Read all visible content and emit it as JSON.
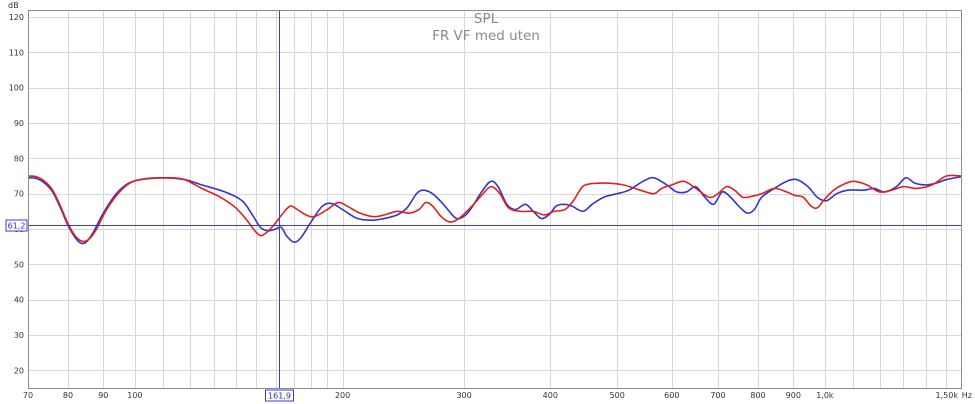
{
  "chart_data": {
    "type": "line",
    "title": "SPL",
    "subtitle": "FR VF med uten",
    "y_unit": "dB",
    "x_unit": "Hz",
    "x_scale": "log",
    "xlim": [
      70,
      1575
    ],
    "ylim": [
      15,
      122
    ],
    "grid": true,
    "legend": "none",
    "x_ticks": [
      {
        "value": 70,
        "label": "70"
      },
      {
        "value": 80,
        "label": "80"
      },
      {
        "value": 90,
        "label": "90"
      },
      {
        "value": 100,
        "label": "100"
      },
      {
        "value": 200,
        "label": "200"
      },
      {
        "value": 300,
        "label": "300"
      },
      {
        "value": 400,
        "label": "400"
      },
      {
        "value": 500,
        "label": "500"
      },
      {
        "value": 600,
        "label": "600"
      },
      {
        "value": 700,
        "label": "700"
      },
      {
        "value": 800,
        "label": "800"
      },
      {
        "value": 900,
        "label": "900"
      },
      {
        "value": 1000,
        "label": "1,0k"
      },
      {
        "value": 1500,
        "label": "1,50k"
      }
    ],
    "x_minor_ticks": [
      110,
      120,
      130,
      140,
      150,
      160,
      170,
      180,
      190,
      1100,
      1200,
      1300,
      1400
    ],
    "y_ticks": [
      {
        "value": 20,
        "label": "20"
      },
      {
        "value": 30,
        "label": "30"
      },
      {
        "value": 40,
        "label": "40"
      },
      {
        "value": 50,
        "label": "50"
      },
      {
        "value": 60,
        "label": "60"
      },
      {
        "value": 70,
        "label": "70"
      },
      {
        "value": 80,
        "label": "80"
      },
      {
        "value": 90,
        "label": "90"
      },
      {
        "value": 100,
        "label": "100"
      },
      {
        "value": 110,
        "label": "110"
      },
      {
        "value": 120,
        "label": "120"
      }
    ],
    "cursor": {
      "x": 161.9,
      "x_label": "161,9",
      "y": 61.2,
      "y_label": "61,2",
      "color": "#3a3ad0"
    },
    "series": [
      {
        "color": "#3535c8",
        "points": [
          [
            70,
            74.5
          ],
          [
            72,
            74.3
          ],
          [
            74,
            73
          ],
          [
            76,
            70.5
          ],
          [
            78,
            66
          ],
          [
            80,
            61
          ],
          [
            82,
            57.5
          ],
          [
            83.5,
            56
          ],
          [
            85,
            56.3
          ],
          [
            87,
            59
          ],
          [
            90,
            64.5
          ],
          [
            94,
            70
          ],
          [
            98,
            73
          ],
          [
            103,
            74.2
          ],
          [
            110,
            74.5
          ],
          [
            118,
            74
          ],
          [
            125,
            72.5
          ],
          [
            135,
            70.5
          ],
          [
            143,
            68
          ],
          [
            148,
            64
          ],
          [
            152,
            60.5
          ],
          [
            156,
            59.5
          ],
          [
            160,
            60
          ],
          [
            163,
            60.5
          ],
          [
            166,
            58
          ],
          [
            170,
            56.3
          ],
          [
            174,
            57.5
          ],
          [
            180,
            62
          ],
          [
            187,
            66.5
          ],
          [
            193,
            67.2
          ],
          [
            200,
            65.5
          ],
          [
            210,
            63
          ],
          [
            220,
            62.5
          ],
          [
            230,
            63
          ],
          [
            240,
            64
          ],
          [
            248,
            66
          ],
          [
            256,
            70
          ],
          [
            262,
            71
          ],
          [
            270,
            70
          ],
          [
            280,
            67
          ],
          [
            290,
            63.5
          ],
          [
            296,
            63
          ],
          [
            305,
            65
          ],
          [
            318,
            70.5
          ],
          [
            328,
            73.5
          ],
          [
            336,
            72
          ],
          [
            346,
            67
          ],
          [
            356,
            65.5
          ],
          [
            368,
            67
          ],
          [
            378,
            65
          ],
          [
            388,
            63
          ],
          [
            398,
            64
          ],
          [
            408,
            66.5
          ],
          [
            418,
            67
          ],
          [
            430,
            66.5
          ],
          [
            446,
            65
          ],
          [
            460,
            67
          ],
          [
            478,
            69
          ],
          [
            500,
            70
          ],
          [
            520,
            71
          ],
          [
            545,
            73.5
          ],
          [
            565,
            74.5
          ],
          [
            590,
            72.5
          ],
          [
            610,
            70.5
          ],
          [
            630,
            70.5
          ],
          [
            650,
            72
          ],
          [
            670,
            69
          ],
          [
            690,
            67
          ],
          [
            710,
            70.5
          ],
          [
            730,
            69
          ],
          [
            750,
            66.5
          ],
          [
            772,
            64.5
          ],
          [
            790,
            65.5
          ],
          [
            810,
            69
          ],
          [
            845,
            71.5
          ],
          [
            880,
            73.5
          ],
          [
            910,
            74
          ],
          [
            945,
            72
          ],
          [
            975,
            69
          ],
          [
            1005,
            68
          ],
          [
            1040,
            70
          ],
          [
            1080,
            71
          ],
          [
            1140,
            71
          ],
          [
            1180,
            71.5
          ],
          [
            1220,
            70.5
          ],
          [
            1270,
            72
          ],
          [
            1310,
            74.5
          ],
          [
            1350,
            73
          ],
          [
            1400,
            72.5
          ],
          [
            1450,
            73
          ],
          [
            1500,
            74
          ],
          [
            1575,
            74.8
          ]
        ]
      },
      {
        "color": "#e02020",
        "points": [
          [
            70,
            75
          ],
          [
            72,
            74.8
          ],
          [
            74,
            73.5
          ],
          [
            76,
            71
          ],
          [
            78,
            66.5
          ],
          [
            80,
            61.5
          ],
          [
            82,
            58
          ],
          [
            84,
            56.5
          ],
          [
            86,
            57.3
          ],
          [
            88,
            60
          ],
          [
            91,
            65.5
          ],
          [
            95,
            70.5
          ],
          [
            99,
            73.3
          ],
          [
            104,
            74.2
          ],
          [
            112,
            74.5
          ],
          [
            118,
            74
          ],
          [
            125,
            71.5
          ],
          [
            133,
            69
          ],
          [
            140,
            66
          ],
          [
            146,
            62
          ],
          [
            150,
            59
          ],
          [
            153,
            58.2
          ],
          [
            158,
            60.5
          ],
          [
            164,
            64.5
          ],
          [
            168,
            66.5
          ],
          [
            172,
            65.5
          ],
          [
            177,
            64
          ],
          [
            182,
            63.5
          ],
          [
            190,
            65.5
          ],
          [
            197,
            67.5
          ],
          [
            203,
            66.5
          ],
          [
            212,
            64.5
          ],
          [
            222,
            63.5
          ],
          [
            230,
            64
          ],
          [
            240,
            65
          ],
          [
            250,
            64.5
          ],
          [
            258,
            65.5
          ],
          [
            264,
            67.5
          ],
          [
            270,
            66.5
          ],
          [
            278,
            63.5
          ],
          [
            286,
            62
          ],
          [
            295,
            63
          ],
          [
            308,
            66.5
          ],
          [
            318,
            69.5
          ],
          [
            328,
            72
          ],
          [
            338,
            70
          ],
          [
            348,
            66
          ],
          [
            362,
            65
          ],
          [
            378,
            65
          ],
          [
            392,
            64
          ],
          [
            405,
            65
          ],
          [
            420,
            65.5
          ],
          [
            432,
            68
          ],
          [
            440,
            70.5
          ],
          [
            450,
            72.5
          ],
          [
            480,
            73
          ],
          [
            510,
            72.5
          ],
          [
            540,
            71
          ],
          [
            565,
            70
          ],
          [
            580,
            71.5
          ],
          [
            600,
            72.5
          ],
          [
            625,
            73.5
          ],
          [
            650,
            71.5
          ],
          [
            680,
            69
          ],
          [
            700,
            70
          ],
          [
            720,
            72
          ],
          [
            740,
            71
          ],
          [
            760,
            69
          ],
          [
            785,
            69.3
          ],
          [
            810,
            70
          ],
          [
            845,
            71.5
          ],
          [
            880,
            70.5
          ],
          [
            905,
            69.5
          ],
          [
            930,
            69
          ],
          [
            955,
            66.5
          ],
          [
            975,
            66
          ],
          [
            1000,
            68.5
          ],
          [
            1030,
            71
          ],
          [
            1060,
            72.5
          ],
          [
            1100,
            73.5
          ],
          [
            1150,
            72.5
          ],
          [
            1200,
            70.5
          ],
          [
            1250,
            71
          ],
          [
            1300,
            72
          ],
          [
            1360,
            71.5
          ],
          [
            1430,
            72.5
          ],
          [
            1500,
            75
          ],
          [
            1575,
            75
          ]
        ]
      }
    ]
  }
}
